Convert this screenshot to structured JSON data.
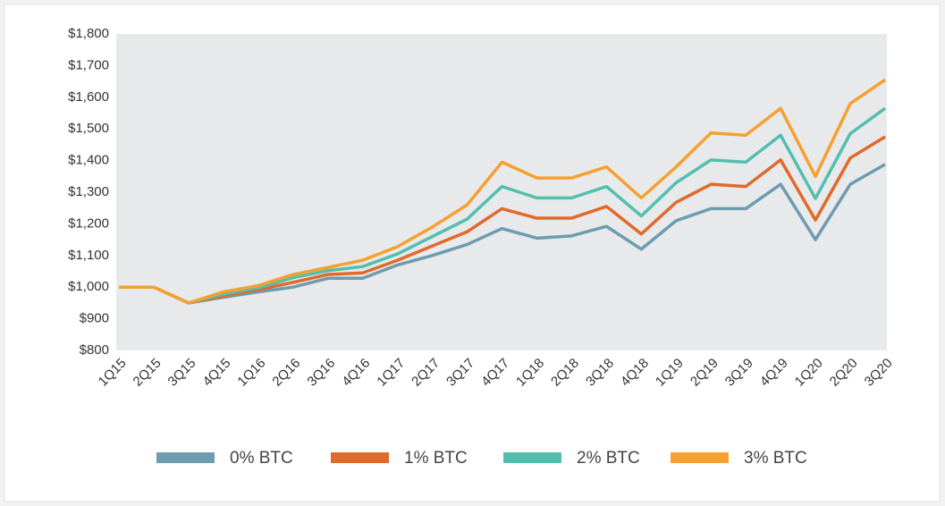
{
  "chart_data": {
    "type": "line",
    "categories": [
      "1Q15",
      "2Q15",
      "3Q15",
      "4Q15",
      "1Q16",
      "2Q16",
      "3Q16",
      "4Q16",
      "1Q17",
      "2Q17",
      "3Q17",
      "4Q17",
      "1Q18",
      "2Q18",
      "3Q18",
      "4Q18",
      "1Q19",
      "2Q19",
      "3Q19",
      "4Q19",
      "1Q20",
      "2Q20",
      "3Q20"
    ],
    "series": [
      {
        "name": "0% BTC",
        "color": "#6d9bb0",
        "values": [
          1000,
          1000,
          950,
          968,
          985,
          1000,
          1028,
          1028,
          1070,
          1100,
          1135,
          1185,
          1155,
          1162,
          1192,
          1120,
          1210,
          1248,
          1248,
          1325,
          1150,
          1325,
          1388
        ]
      },
      {
        "name": "1% BTC",
        "color": "#e06a2b",
        "values": [
          1000,
          1000,
          950,
          972,
          992,
          1015,
          1040,
          1045,
          1085,
          1130,
          1175,
          1248,
          1218,
          1218,
          1255,
          1168,
          1268,
          1325,
          1318,
          1402,
          1212,
          1408,
          1475
        ]
      },
      {
        "name": "2% BTC",
        "color": "#52bfae",
        "values": [
          1000,
          1000,
          950,
          978,
          998,
          1030,
          1052,
          1065,
          1105,
          1160,
          1215,
          1318,
          1282,
          1282,
          1318,
          1225,
          1330,
          1402,
          1395,
          1480,
          1280,
          1485,
          1565
        ]
      },
      {
        "name": "3% BTC",
        "color": "#f6a02f",
        "values": [
          1000,
          1000,
          950,
          985,
          1005,
          1040,
          1062,
          1085,
          1128,
          1190,
          1260,
          1395,
          1345,
          1345,
          1380,
          1282,
          1380,
          1487,
          1480,
          1565,
          1350,
          1580,
          1655
        ]
      }
    ],
    "ylim": [
      800,
      1800
    ],
    "yticks": [
      {
        "value": 800,
        "label": "$800"
      },
      {
        "value": 900,
        "label": "$900"
      },
      {
        "value": 1000,
        "label": "$1,000"
      },
      {
        "value": 1100,
        "label": "$1,100"
      },
      {
        "value": 1200,
        "label": "$1,200"
      },
      {
        "value": 1300,
        "label": "$1,300"
      },
      {
        "value": 1400,
        "label": "$1,400"
      },
      {
        "value": 1500,
        "label": "$1,500"
      },
      {
        "value": 1600,
        "label": "$1,600"
      },
      {
        "value": 1700,
        "label": "$1,700"
      },
      {
        "value": 1800,
        "label": "$1,800"
      }
    ]
  }
}
